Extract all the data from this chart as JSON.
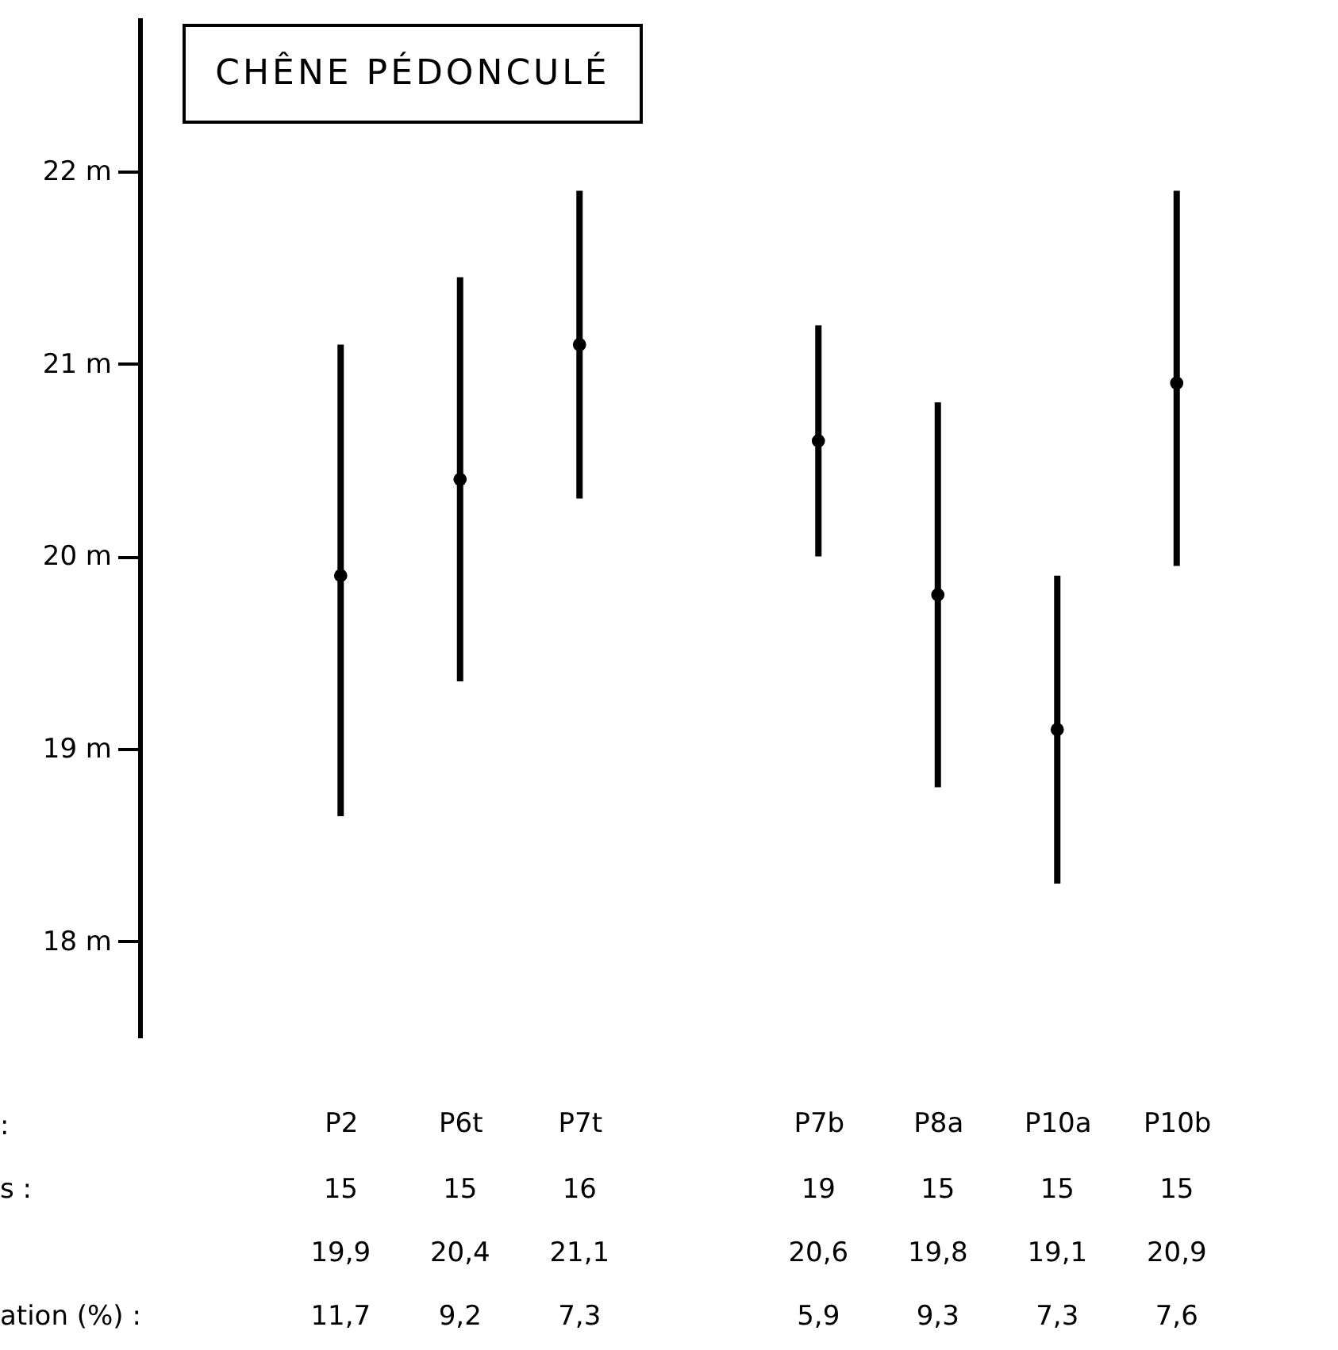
{
  "chart_data": {
    "type": "scatter",
    "title": "CHÊNE PÉDONCULÉ",
    "categories": [
      "P2",
      "P6t",
      "P7t",
      null,
      "P7b",
      "P8a",
      "P10a",
      "P10b"
    ],
    "series": [
      {
        "color": "#000000",
        "values": [
          19.9,
          20.4,
          21.1,
          null,
          20.6,
          19.8,
          19.1,
          20.9
        ],
        "errors": [
          [
            18.65,
            21.1
          ],
          [
            19.35,
            21.45
          ],
          [
            20.3,
            21.9
          ],
          null,
          [
            20.0,
            21.2
          ],
          [
            18.8,
            20.8
          ],
          [
            18.3,
            19.9
          ],
          [
            19.95,
            21.9
          ]
        ],
        "value_labels": [
          "19,9",
          "20,4",
          "21,1",
          null,
          "20,6",
          "19,8",
          "19,1",
          "20,9"
        ]
      }
    ],
    "marker": "circle",
    "ylim": [
      17.5,
      22.8
    ],
    "yticks": [
      {
        "value": 18,
        "label": "18 m"
      },
      {
        "value": 19,
        "label": "19 m"
      },
      {
        "value": 20,
        "label": "20 m"
      },
      {
        "value": 21,
        "label": "21 m"
      },
      {
        "value": 22,
        "label": "22 m"
      }
    ],
    "annotations": [
      ":",
      "s :",
      "15",
      "15",
      "16",
      "19",
      "15",
      "15",
      "15",
      "ation (%) :",
      "11,7",
      "9,2",
      "7,3",
      "5,9",
      "9,3",
      "7,3",
      "7,6"
    ]
  }
}
